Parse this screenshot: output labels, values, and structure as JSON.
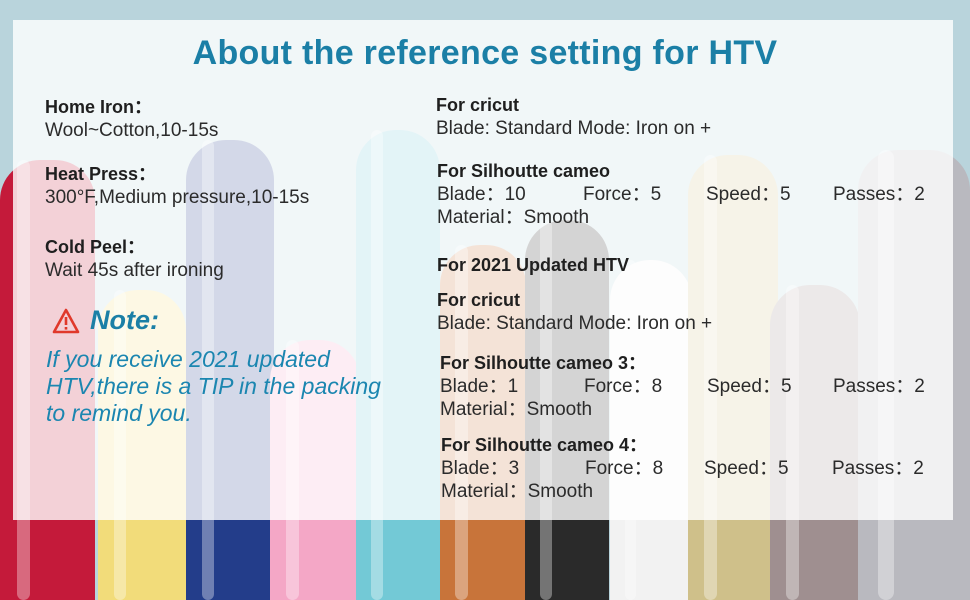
{
  "title": "About  the reference setting for HTV",
  "left": {
    "home_iron": {
      "label": "Home Iron：",
      "value": "Wool~Cotton,10-15s"
    },
    "heat_press": {
      "label": "Heat Press：",
      "value": "300°F,Medium pressure,10-15s"
    },
    "cold_peel": {
      "label": "Cold Peel：",
      "value": "Wait 45s after ironing"
    }
  },
  "note": {
    "icon": "warning-triangle-icon",
    "heading": "Note:",
    "text": "If you receive 2021 updated HTV,there is a TIP in the packing to remind you."
  },
  "right": {
    "cricut1": {
      "label": "For cricut",
      "value": "Blade: Standard  Mode: Iron on +"
    },
    "cameo": {
      "label": "For Silhoutte cameo",
      "blade": "Blade：10",
      "force": "Force：5",
      "speed": "Speed：5",
      "passes": "Passes：2",
      "material": "Material：Smooth"
    },
    "updated_heading": "For 2021 Updated HTV",
    "cricut2": {
      "label": "For cricut",
      "value": "Blade: Standard  Mode: Iron on +"
    },
    "cameo3": {
      "label": "For Silhoutte cameo 3：",
      "blade": "Blade：1",
      "force": "Force：8",
      "speed": "Speed：5",
      "passes": "Passes：2",
      "material": "Material：Smooth"
    },
    "cameo4": {
      "label": "For Silhoutte cameo 4：",
      "blade": "Blade：3",
      "force": "Force：8",
      "speed": "Speed：5",
      "passes": "Passes：2",
      "material": "Material：Smooth"
    }
  },
  "colors": {
    "title": "#1b7fa6",
    "note": "#1b86b0",
    "rolls": [
      "#c41a3a",
      "#f2dc7a",
      "#233d8a",
      "#f4a7c6",
      "#73c9d6",
      "#c8743a",
      "#2a2a2a",
      "#f2f2f2",
      "#cfc08a",
      "#9f8f90",
      "#b9b9bf"
    ]
  }
}
